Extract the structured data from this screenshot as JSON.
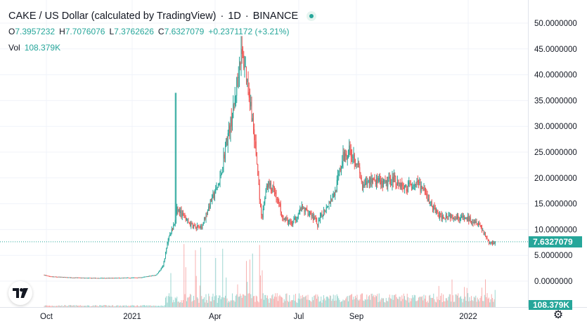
{
  "header": {
    "symbol_title": "CAKE / US Dollar (calculated by TradingView)",
    "interval": "1D",
    "exchange": "BINANCE",
    "separator": "·"
  },
  "ohlc": {
    "open_label": "O",
    "open": "7.3957232",
    "high_label": "H",
    "high": "7.7076076",
    "low_label": "L",
    "low": "7.3762626",
    "close_label": "C",
    "close": "7.6327079",
    "change": "+0.2371172 (+3.21%)"
  },
  "volume": {
    "label": "Vol",
    "value": "108.379K"
  },
  "price_axis": {
    "ticks": [
      "50.0000000",
      "45.0000000",
      "40.0000000",
      "35.0000000",
      "30.0000000",
      "25.0000000",
      "20.0000000",
      "15.0000000",
      "10.0000000",
      "5.0000000",
      "0.0000000"
    ],
    "last_price": "7.6327079",
    "last_volume": "108.379K"
  },
  "time_axis": {
    "ticks": [
      "Oct",
      "2021",
      "Apr",
      "Jul",
      "Sep",
      "2022"
    ]
  },
  "colors": {
    "up": "#26a69a",
    "down": "#ef5350",
    "grid": "#f0f3fa",
    "text": "#131722"
  },
  "icons": {
    "live": "live-status-dot-icon",
    "logo": "tradingview-logo-icon",
    "settings": "gear-icon"
  },
  "chart_data": {
    "type": "candlestick",
    "symbol": "CAKE/USD",
    "interval": "1D",
    "ylim": [
      0,
      50
    ],
    "last_close": 7.6327079,
    "x_ticks": [
      "Oct",
      "2021",
      "Apr",
      "Jul",
      "Sep",
      "2022"
    ],
    "series": [
      {
        "name": "close",
        "points": [
          [
            "Sep 2020",
            1.2
          ],
          [
            "Oct 2020",
            0.8
          ],
          [
            "Nov 2020",
            0.6
          ],
          [
            "Dec 2020",
            0.7
          ],
          [
            "Jan 2021",
            0.9
          ],
          [
            "Feb 2021",
            3.0
          ],
          [
            "Feb 2021",
            8.5
          ],
          [
            "Mar 2021",
            12.0
          ],
          [
            "Mar 2021",
            14.5
          ],
          [
            "Apr 2021",
            18.0
          ],
          [
            "Apr 2021",
            28.0
          ],
          [
            "May 2021",
            35.0
          ],
          [
            "May 2021",
            42.0
          ],
          [
            "Jun 2021",
            20.0
          ],
          [
            "Jun 2021",
            15.0
          ],
          [
            "Jul 2021",
            13.0
          ],
          [
            "Aug 2021",
            17.0
          ],
          [
            "Sep 2021",
            25.0
          ],
          [
            "Oct 2021",
            20.0
          ],
          [
            "Nov 2021",
            19.0
          ],
          [
            "Dec 2021",
            12.5
          ],
          [
            "Jan 2022",
            11.0
          ],
          [
            "Feb 2022",
            7.63
          ]
        ]
      }
    ]
  }
}
